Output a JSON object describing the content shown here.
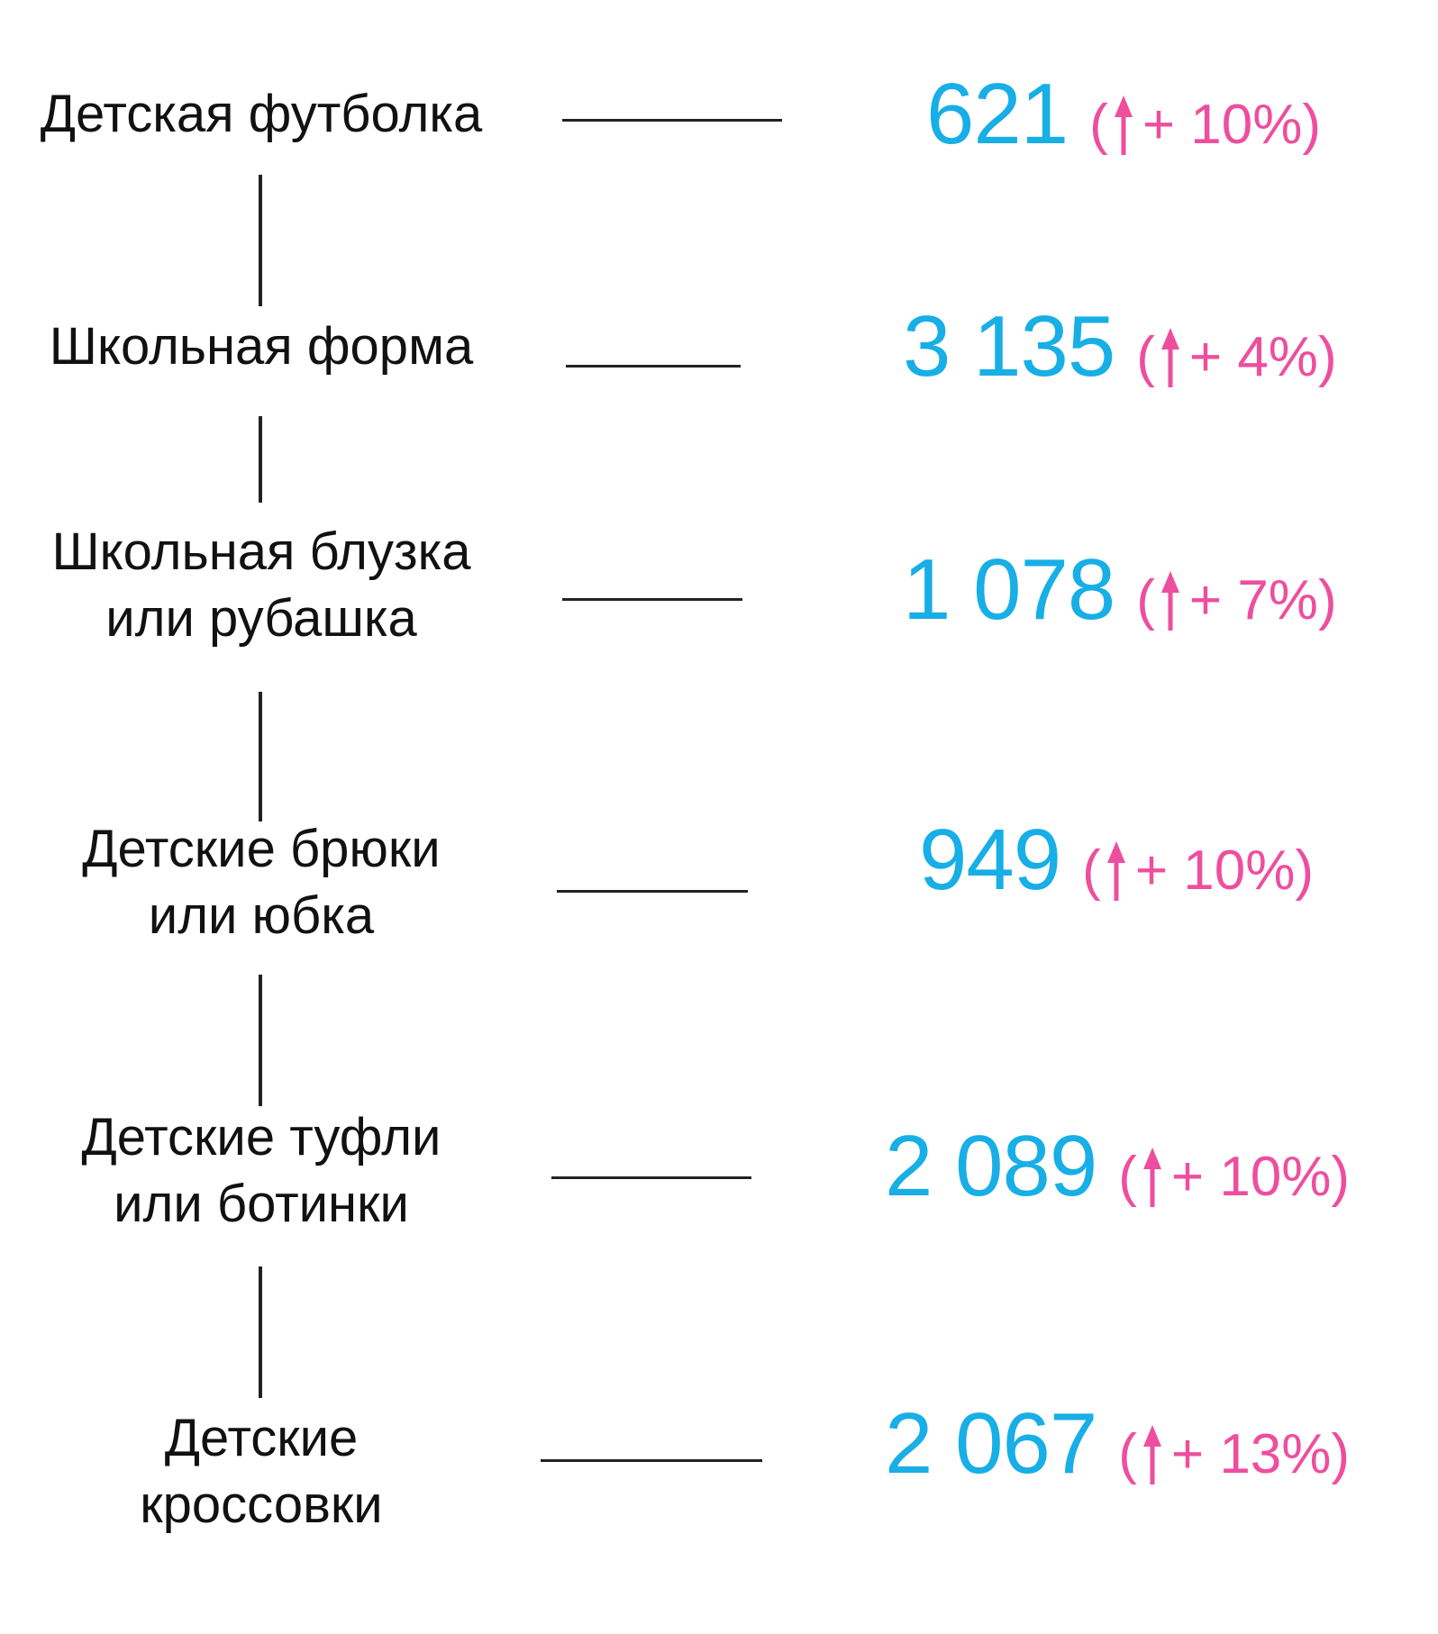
{
  "colors": {
    "text": "#111111",
    "line": "#222222",
    "number": "#18aee6",
    "delta": "#ee4e9e"
  },
  "items": [
    {
      "label_lines": [
        "Детская футболка"
      ],
      "number": "621",
      "open_paren": "(",
      "arrow_icon": "arrow-up-icon",
      "change": "+ 10%",
      "close_paren": ")"
    },
    {
      "label_lines": [
        "Школьная форма"
      ],
      "number": "3 135",
      "open_paren": "(",
      "arrow_icon": "arrow-up-icon",
      "change": "+ 4%",
      "close_paren": ")"
    },
    {
      "label_lines": [
        "Школьная блузка",
        "или рубашка"
      ],
      "number": "1 078",
      "open_paren": "(",
      "arrow_icon": "arrow-up-icon",
      "change": "+ 7%",
      "close_paren": ")"
    },
    {
      "label_lines": [
        "Детские брюки",
        "или юбка"
      ],
      "number": "949",
      "open_paren": "(",
      "arrow_icon": "arrow-up-icon",
      "change": "+ 10%",
      "close_paren": ")"
    },
    {
      "label_lines": [
        "Детские туфли",
        "или ботинки"
      ],
      "number": "2 089",
      "open_paren": "(",
      "arrow_icon": "arrow-up-icon",
      "change": "+ 10%",
      "close_paren": ")"
    },
    {
      "label_lines": [
        "Детские",
        "кроссовки"
      ],
      "number": "2 067",
      "open_paren": "(",
      "arrow_icon": "arrow-up-icon",
      "change": "+ 13%",
      "close_paren": ")"
    }
  ]
}
